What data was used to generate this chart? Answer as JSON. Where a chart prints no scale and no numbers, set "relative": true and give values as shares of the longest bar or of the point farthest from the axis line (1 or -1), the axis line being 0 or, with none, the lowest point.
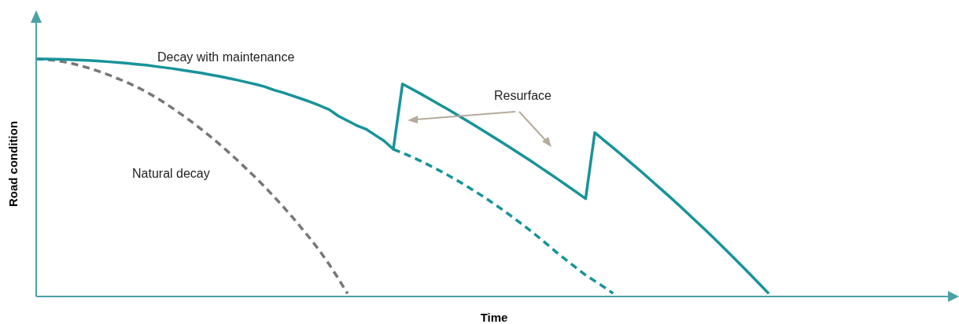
{
  "chart_data": {
    "type": "line",
    "relative": true,
    "xlabel": "Time",
    "ylabel": "Road condition",
    "legend": false,
    "marker": "none",
    "annotations": [
      "Resurface"
    ],
    "categories": [
      null,
      null,
      null,
      null,
      null,
      null,
      null,
      null,
      null,
      null,
      null,
      null,
      null,
      null,
      null,
      null,
      null,
      null,
      null,
      null,
      null,
      null,
      null,
      null,
      null,
      null,
      null,
      null,
      null,
      null,
      null,
      null,
      null,
      null,
      null,
      null,
      null,
      null,
      null,
      null,
      null,
      null,
      null,
      null,
      null,
      null,
      null,
      null,
      null,
      null,
      null,
      null,
      null,
      null,
      null,
      null,
      null,
      null,
      null,
      null,
      null,
      null,
      null,
      null,
      null,
      null,
      null,
      null,
      null,
      null,
      null,
      null,
      null,
      null,
      null,
      null,
      null,
      null,
      null,
      null,
      null,
      null,
      null,
      null,
      null,
      null,
      null,
      null,
      null,
      null,
      null,
      null,
      null,
      null,
      null,
      null,
      null,
      null,
      null,
      null,
      null
    ],
    "series": [
      {
        "name": "Decay with maintenance",
        "color": "#17939a",
        "line_style": "solid",
        "values": [
          1.0,
          1.0,
          0.999,
          0.998,
          0.997,
          0.995,
          0.993,
          0.991,
          0.988,
          0.985,
          0.982,
          0.978,
          0.974,
          0.969,
          0.964,
          0.959,
          0.953,
          0.947,
          0.941,
          0.934,
          0.927,
          0.919,
          0.911,
          0.902,
          0.893,
          0.883,
          0.869,
          0.858,
          0.845,
          0.832,
          0.818,
          0.803,
          0.787,
          0.76,
          0.74,
          0.72,
          0.705,
          0.68,
          0.655,
          0.62,
          0.895,
          0.874,
          0.853,
          0.831,
          0.809,
          0.787,
          0.764,
          0.741,
          0.718,
          0.694,
          0.67,
          0.646,
          0.621,
          0.596,
          0.571,
          0.545,
          0.519,
          0.493,
          0.466,
          0.439,
          0.412,
          0.69,
          0.658,
          0.626,
          0.594,
          0.561,
          0.528,
          0.494,
          0.46,
          0.426,
          0.391,
          0.355,
          0.319,
          0.283,
          0.246,
          0.208,
          0.17,
          0.131,
          0.092,
          0.052,
          0.012,
          null,
          null,
          null,
          null,
          null,
          null,
          null,
          null,
          null,
          null,
          null,
          null,
          null,
          null,
          null,
          null,
          null,
          null,
          null,
          null
        ]
      },
      {
        "color": "#17939a",
        "line_style": "dashed",
        "values": [
          null,
          null,
          null,
          null,
          null,
          null,
          null,
          null,
          null,
          null,
          null,
          null,
          null,
          null,
          null,
          null,
          null,
          null,
          null,
          null,
          null,
          null,
          null,
          null,
          null,
          null,
          null,
          null,
          null,
          null,
          null,
          null,
          null,
          null,
          null,
          null,
          null,
          null,
          null,
          0.62,
          0.605,
          0.588,
          0.57,
          0.551,
          0.531,
          0.51,
          0.488,
          0.465,
          0.441,
          0.416,
          0.39,
          0.363,
          0.335,
          0.306,
          0.276,
          0.245,
          0.213,
          0.18,
          0.15,
          0.12,
          0.09,
          0.065,
          0.04,
          0.013,
          null,
          null,
          null,
          null,
          null,
          null,
          null,
          null,
          null,
          null,
          null,
          null,
          null,
          null,
          null,
          null,
          null,
          null,
          null,
          null,
          null,
          null,
          null,
          null,
          null,
          null,
          null,
          null,
          null,
          null,
          null,
          null,
          null,
          null,
          null,
          null,
          null
        ]
      },
      {
        "name": "Natural decay",
        "color": "#777777",
        "line_style": "dashed",
        "values": [
          1.0,
          0.998,
          0.994,
          0.988,
          0.98,
          0.97,
          0.959,
          0.946,
          0.932,
          0.916,
          0.9,
          0.882,
          0.862,
          0.84,
          0.816,
          0.79,
          0.763,
          0.735,
          0.705,
          0.674,
          0.642,
          0.608,
          0.573,
          0.536,
          0.499,
          0.46,
          0.419,
          0.377,
          0.333,
          0.287,
          0.24,
          0.19,
          0.135,
          0.075,
          0.012,
          null,
          null,
          null,
          null,
          null,
          null,
          null,
          null,
          null,
          null,
          null,
          null,
          null,
          null,
          null,
          null,
          null,
          null,
          null,
          null,
          null,
          null,
          null,
          null,
          null,
          null,
          null,
          null,
          null,
          null,
          null,
          null,
          null,
          null,
          null,
          null,
          null,
          null,
          null,
          null,
          null,
          null,
          null,
          null,
          null,
          null,
          null,
          null,
          null,
          null,
          null,
          null,
          null,
          null,
          null,
          null,
          null,
          null,
          null,
          null,
          null,
          null,
          null,
          null,
          null,
          null
        ]
      }
    ]
  }
}
